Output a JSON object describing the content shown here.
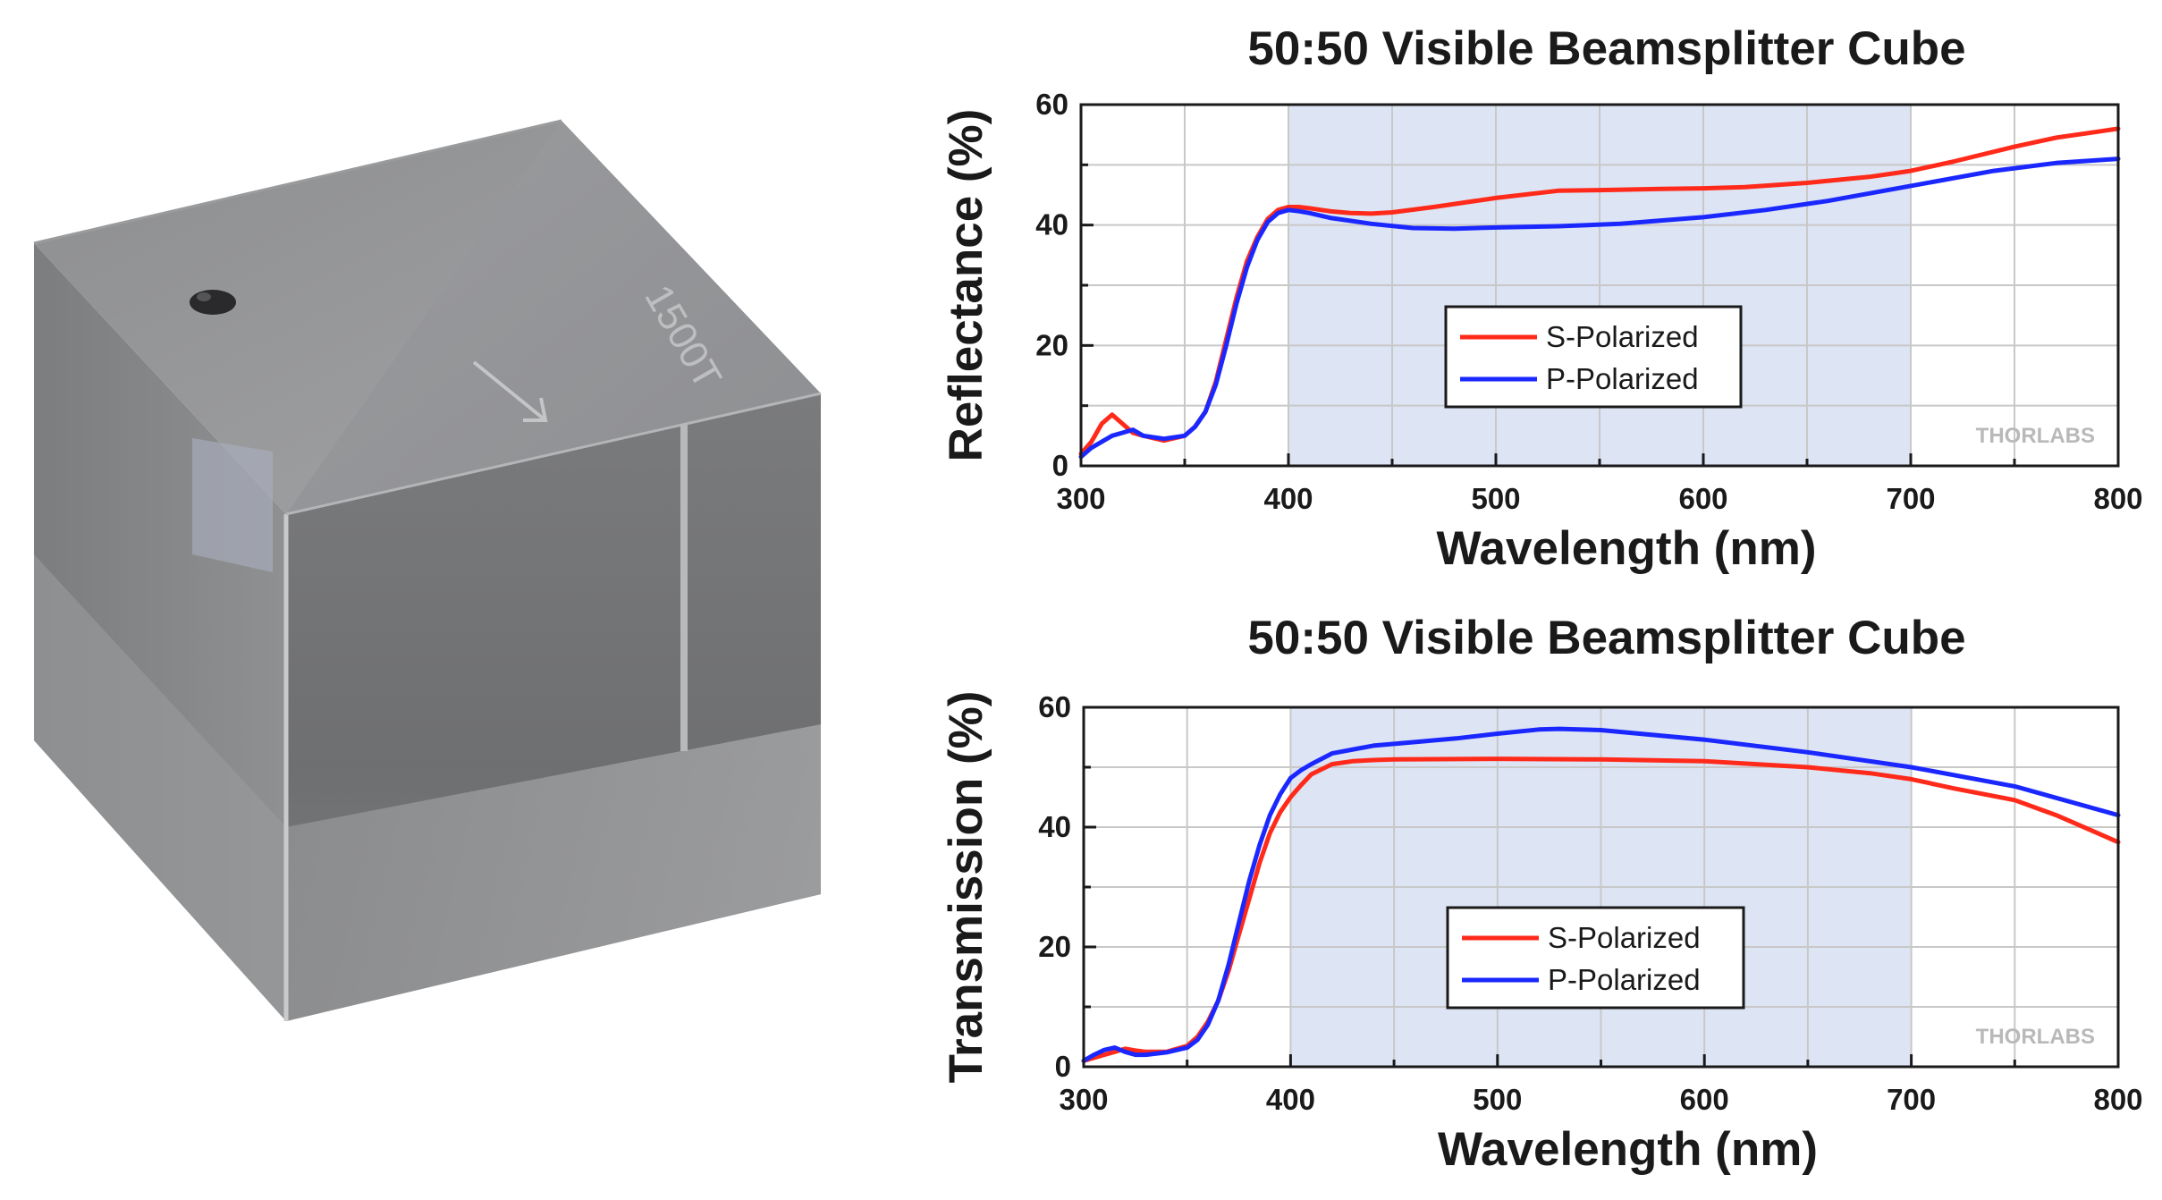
{
  "product": {
    "engraving": "1500T"
  },
  "colors": {
    "s_polarized": "#ff2a1a",
    "p_polarized": "#1a28ff",
    "highlight_band": "#dde4f4",
    "grid": "#c8c8c8"
  },
  "chart_data": [
    {
      "type": "line",
      "title": "50:50 Visible Beamsplitter Cube",
      "xlabel": "Wavelength (nm)",
      "ylabel": "Reflectance (%)",
      "xlim": [
        300,
        800
      ],
      "ylim": [
        0,
        60
      ],
      "xticks": [
        300,
        400,
        500,
        600,
        700,
        800
      ],
      "yticks": [
        0,
        20,
        40,
        60
      ],
      "highlight_range": [
        400,
        700
      ],
      "grid": true,
      "legend_position": "center",
      "watermark": "THORLABS",
      "series": [
        {
          "name": "S-Polarized",
          "color": "#ff2a1a",
          "x": [
            300,
            305,
            310,
            315,
            320,
            325,
            330,
            340,
            350,
            355,
            360,
            365,
            370,
            375,
            380,
            385,
            390,
            395,
            400,
            405,
            410,
            420,
            430,
            440,
            450,
            470,
            500,
            530,
            550,
            580,
            600,
            620,
            650,
            680,
            700,
            720,
            750,
            770,
            790,
            800
          ],
          "y": [
            2,
            4,
            7,
            8.5,
            7,
            5.5,
            5,
            4.2,
            5,
            6.5,
            9,
            14,
            21,
            28,
            34,
            38,
            41,
            42.5,
            43,
            43,
            42.8,
            42.3,
            42,
            41.9,
            42.1,
            43,
            44.5,
            45.7,
            45.8,
            46,
            46.1,
            46.3,
            47,
            48,
            49,
            50.5,
            53,
            54.5,
            55.5,
            56
          ]
        },
        {
          "name": "P-Polarized",
          "color": "#1a28ff",
          "x": [
            300,
            305,
            310,
            315,
            320,
            325,
            330,
            340,
            350,
            355,
            360,
            365,
            370,
            375,
            380,
            385,
            390,
            395,
            400,
            405,
            410,
            420,
            440,
            460,
            480,
            500,
            530,
            560,
            600,
            630,
            660,
            700,
            740,
            770,
            800
          ],
          "y": [
            1.5,
            3,
            4,
            5,
            5.5,
            6,
            5,
            4.5,
            5,
            6.5,
            9,
            13.5,
            20,
            27,
            33,
            37.5,
            40.5,
            42,
            42.5,
            42.3,
            42,
            41.2,
            40.2,
            39.5,
            39.4,
            39.6,
            39.8,
            40.2,
            41.3,
            42.5,
            44,
            46.5,
            49,
            50.3,
            51
          ]
        }
      ]
    },
    {
      "type": "line",
      "title": "50:50 Visible Beamsplitter Cube",
      "xlabel": "Wavelength (nm)",
      "ylabel": "Transmission (%)",
      "xlim": [
        300,
        800
      ],
      "ylim": [
        0,
        60
      ],
      "xticks": [
        300,
        400,
        500,
        600,
        700,
        800
      ],
      "yticks": [
        0,
        20,
        40,
        60
      ],
      "highlight_range": [
        400,
        700
      ],
      "grid": true,
      "legend_position": "center",
      "watermark": "THORLABS",
      "series": [
        {
          "name": "S-Polarized",
          "color": "#ff2a1a",
          "x": [
            300,
            310,
            315,
            320,
            325,
            330,
            340,
            350,
            355,
            360,
            365,
            370,
            375,
            380,
            385,
            390,
            395,
            400,
            405,
            410,
            420,
            430,
            440,
            450,
            500,
            550,
            600,
            650,
            680,
            700,
            720,
            750,
            770,
            790,
            800
          ],
          "y": [
            1,
            2,
            2.5,
            3,
            2.7,
            2.5,
            2.5,
            3.5,
            5,
            7.5,
            11,
            16,
            22,
            28,
            34,
            39,
            42.5,
            45,
            47,
            48.8,
            50.5,
            51,
            51.2,
            51.3,
            51.4,
            51.3,
            51,
            50,
            49,
            48,
            46.5,
            44.5,
            42,
            39,
            37.5
          ]
        },
        {
          "name": "P-Polarized",
          "color": "#1a28ff",
          "x": [
            300,
            305,
            310,
            315,
            320,
            325,
            330,
            340,
            350,
            355,
            360,
            365,
            370,
            375,
            380,
            385,
            390,
            395,
            400,
            405,
            410,
            420,
            440,
            460,
            480,
            500,
            520,
            530,
            550,
            600,
            650,
            700,
            750,
            800
          ],
          "y": [
            1,
            2,
            2.8,
            3.2,
            2.5,
            2,
            2,
            2.4,
            3.2,
            4.5,
            7,
            11,
            17,
            24,
            31,
            37,
            42,
            45.5,
            48.2,
            49.5,
            50.5,
            52.3,
            53.6,
            54.2,
            54.8,
            55.6,
            56.3,
            56.4,
            56.2,
            54.6,
            52.5,
            50,
            46.8,
            42
          ]
        }
      ]
    }
  ]
}
